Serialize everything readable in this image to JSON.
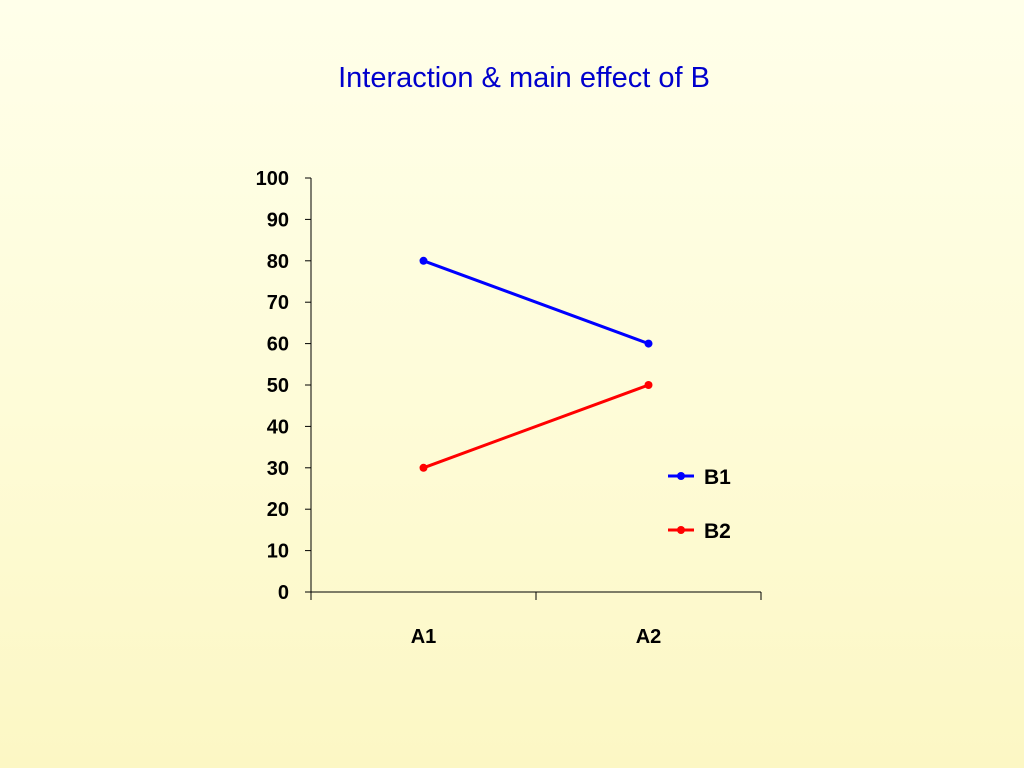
{
  "slide": {
    "title": "Interaction & main effect of B",
    "title_color": "#0000CC",
    "background_top": "#FFFFEA",
    "background_bottom": "#FCF7C4"
  },
  "chart_data": {
    "type": "line",
    "title": "Interaction & main effect of B",
    "xlabel": "",
    "ylabel": "",
    "categories": [
      "A1",
      "A2"
    ],
    "ylim": [
      0,
      100
    ],
    "yticks": [
      0,
      10,
      20,
      30,
      40,
      50,
      60,
      70,
      80,
      90,
      100
    ],
    "grid": false,
    "legend_position": "right",
    "series": [
      {
        "name": "B1",
        "values": [
          80,
          60
        ],
        "color": "#0000FF"
      },
      {
        "name": "B2",
        "values": [
          30,
          50
        ],
        "color": "#FF0000"
      }
    ]
  }
}
